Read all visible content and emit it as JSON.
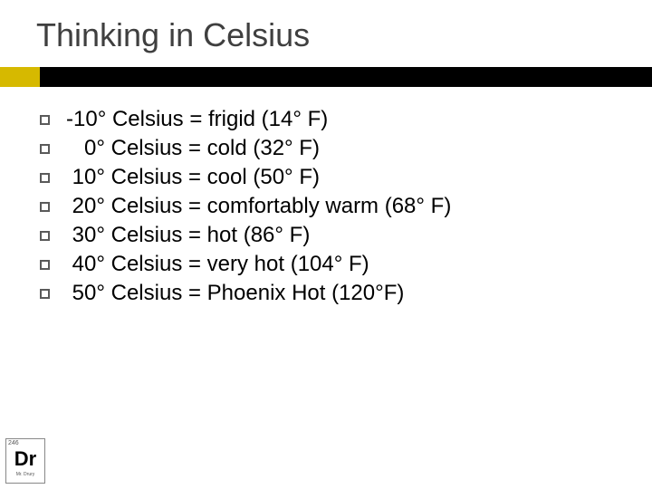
{
  "title": "Thinking in Celsius",
  "accent_color": "#d6b900",
  "bar_color": "#000000",
  "items": [
    "-10° Celsius = frigid (14° F)",
    "   0° Celsius = cold (32° F)",
    " 10° Celsius = cool (50° F)",
    " 20° Celsius = comfortably warm (68° F)",
    " 30° Celsius = hot (86° F)",
    " 40° Celsius = very hot (104° F)",
    " 50° Celsius = Phoenix Hot (120°F)"
  ],
  "logo": {
    "number": "246",
    "symbol": "Dr",
    "subtitle": "Mr. Drury"
  }
}
